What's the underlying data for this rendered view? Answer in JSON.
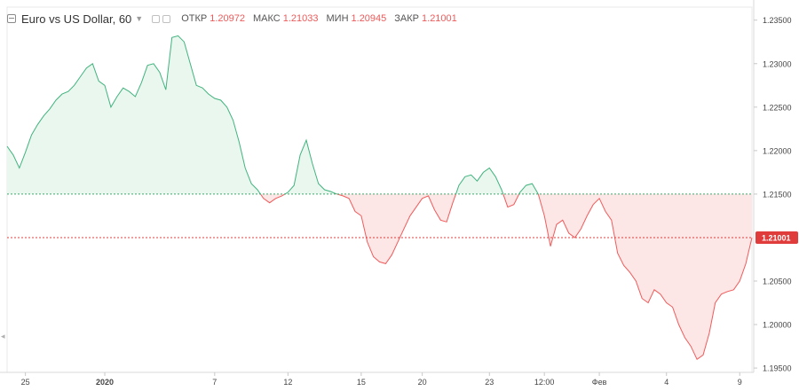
{
  "legend": {
    "title": "Euro vs US Dollar, 60",
    "open_label": "ОТКР",
    "open_value": "1.20972",
    "high_label": "МАКС",
    "high_value": "1.21033",
    "low_label": "МИН",
    "low_value": "1.20945",
    "close_label": "ЗАКР",
    "close_value": "1.21001"
  },
  "colors": {
    "up_line": "#41b37e",
    "up_fill": "#eaf7ef",
    "down_line": "#f05b5b",
    "down_fill": "#fde6e6",
    "last_price": "#e03c3c",
    "baseline_line": "#3ea66c"
  },
  "icons": {
    "collapse": "collapse-icon",
    "dropdown": "chevron-down-icon",
    "settings": "settings-icon",
    "visibility": "eye-icon"
  },
  "chart_data": {
    "type": "area",
    "ylim": [
      1.1945,
      1.2365
    ],
    "baseline": 1.215,
    "last_price_label": "1.21001",
    "yticks": [
      1.235,
      1.23,
      1.225,
      1.22,
      1.215,
      1.205,
      1.2,
      1.195
    ],
    "ytick_labels": [
      "1.23500",
      "1.23000",
      "1.22500",
      "1.22000",
      "1.21500",
      "1.20500",
      "1.20000",
      "1.19500"
    ],
    "x_tick_labels": [
      "25",
      "2020",
      "7",
      "12",
      "15",
      "20",
      "23",
      "12:00",
      "Фев",
      "4",
      "9"
    ],
    "x_tick_positions": [
      3,
      16,
      34,
      46,
      58,
      68,
      79,
      88,
      97,
      108,
      120
    ],
    "series": [
      {
        "x": [
          0,
          1,
          2,
          3,
          4,
          5,
          6,
          7,
          8,
          9,
          10,
          11,
          12,
          13,
          14,
          15,
          16,
          17,
          18,
          19,
          20,
          21,
          22,
          23,
          24,
          25,
          26,
          27,
          28,
          29,
          30,
          31,
          32,
          33,
          34,
          35,
          36,
          37,
          38,
          39,
          40,
          41,
          42,
          43,
          44,
          45,
          46,
          47,
          48,
          49,
          50,
          51,
          52,
          53,
          54,
          55,
          56,
          57,
          58,
          59,
          60,
          61,
          62,
          63,
          64,
          65,
          66,
          67,
          68,
          69,
          70,
          71,
          72,
          73,
          74,
          75,
          76,
          77,
          78,
          79,
          80,
          81,
          82,
          83,
          84,
          85,
          86,
          87,
          88,
          89,
          90,
          91,
          92,
          93,
          94,
          95,
          96,
          97,
          98,
          99,
          100,
          101,
          102,
          103,
          104,
          105,
          106,
          107,
          108,
          109,
          110,
          111,
          112,
          113,
          114,
          115,
          116,
          117,
          118,
          119,
          120,
          121,
          122
        ],
        "values": [
          1.2205,
          1.2195,
          1.218,
          1.2198,
          1.2218,
          1.223,
          1.224,
          1.2248,
          1.2258,
          1.2265,
          1.2268,
          1.2275,
          1.2285,
          1.2295,
          1.23,
          1.228,
          1.2275,
          1.225,
          1.2262,
          1.2272,
          1.2268,
          1.2262,
          1.2278,
          1.2298,
          1.23,
          1.229,
          1.227,
          1.233,
          1.2332,
          1.2325,
          1.23,
          1.2275,
          1.2272,
          1.2265,
          1.226,
          1.2258,
          1.225,
          1.2235,
          1.221,
          1.218,
          1.2162,
          1.2155,
          1.2145,
          1.214,
          1.2145,
          1.2148,
          1.2152,
          1.216,
          1.2195,
          1.2212,
          1.2185,
          1.2162,
          1.2155,
          1.2153,
          1.215,
          1.2148,
          1.2145,
          1.213,
          1.2125,
          1.2095,
          1.2078,
          1.2072,
          1.207,
          1.208,
          1.2095,
          1.211,
          1.2125,
          1.2135,
          1.2145,
          1.2148,
          1.2132,
          1.212,
          1.2118,
          1.214,
          1.216,
          1.217,
          1.2172,
          1.2165,
          1.2175,
          1.218,
          1.217,
          1.2155,
          1.2135,
          1.2138,
          1.2152,
          1.216,
          1.2162,
          1.215,
          1.2125,
          1.209,
          1.2115,
          1.212,
          1.2105,
          1.21,
          1.211,
          1.2125,
          1.2138,
          1.2145,
          1.213,
          1.212,
          1.2082,
          1.2068,
          1.206,
          1.205,
          1.203,
          1.2025,
          1.204,
          1.2035,
          1.2025,
          1.202,
          1.2,
          1.1985,
          1.1975,
          1.196,
          1.1965,
          1.199,
          1.2025,
          1.2035,
          1.2038,
          1.204,
          1.205,
          1.207,
          1.21
        ]
      }
    ]
  }
}
